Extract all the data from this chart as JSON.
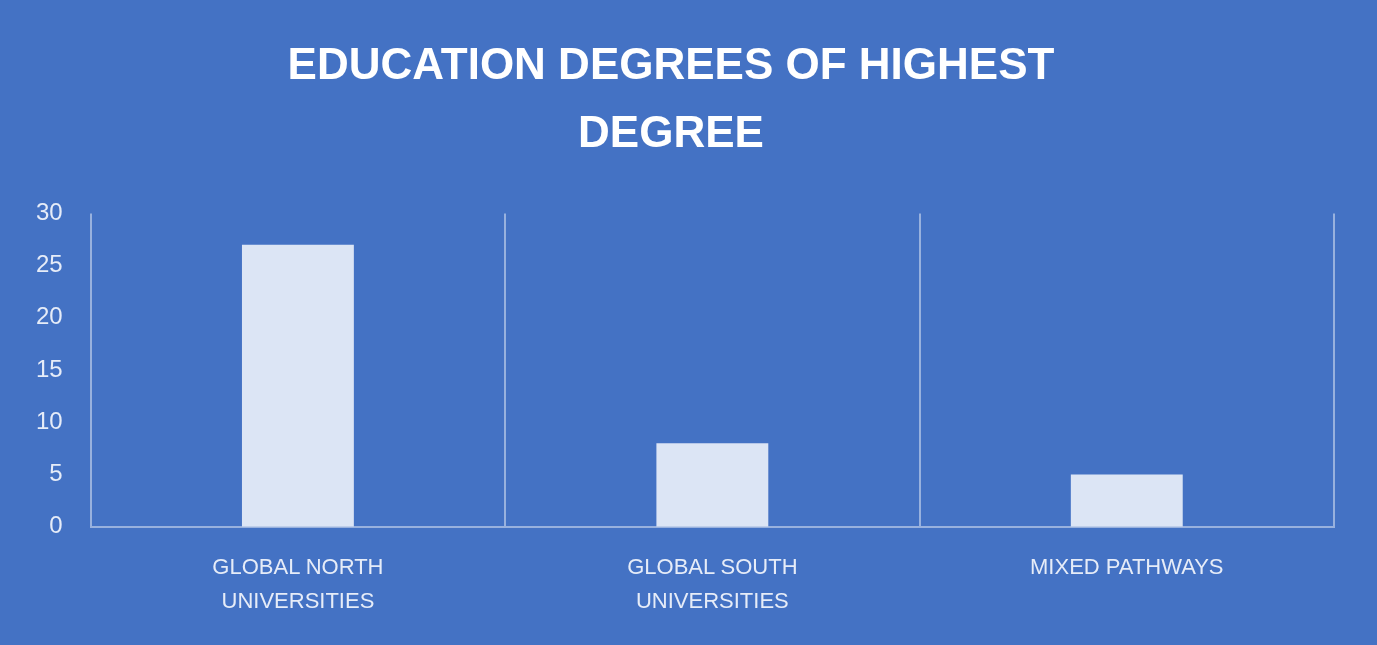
{
  "chart_data": {
    "type": "bar",
    "title": "EDUCATION DEGREES OF HIGHEST DEGREE",
    "categories": [
      "GLOBAL NORTH UNIVERSITIES",
      "GLOBAL SOUTH UNIVERSITIES",
      "MIXED PATHWAYS"
    ],
    "values": [
      27,
      8,
      5
    ],
    "color": "#dce5f5",
    "ylim": [
      0,
      30
    ],
    "yticks": [
      0,
      5,
      10,
      15,
      20,
      25,
      30
    ],
    "grid": "x"
  }
}
